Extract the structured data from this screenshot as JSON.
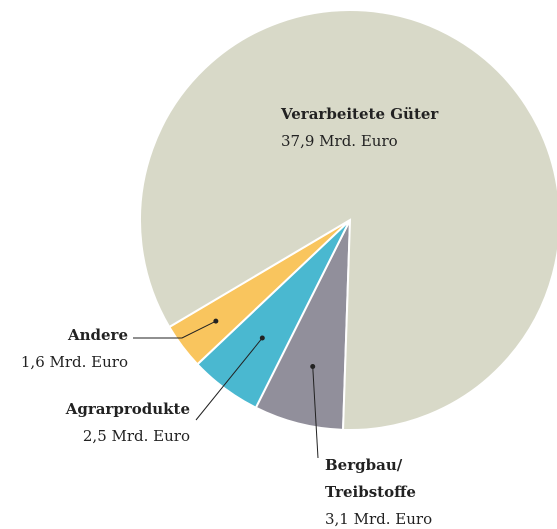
{
  "chart_data": {
    "type": "pie",
    "categories": [
      "Verarbeitete Güter",
      "Bergbau/ Treibstoffe",
      "Agrarprodukte",
      "Andere"
    ],
    "values": [
      37.9,
      3.1,
      2.5,
      1.6
    ],
    "value_labels": [
      "37,9 Mrd. Euro",
      "3,1 Mrd. Euro",
      "2,5 Mrd. Euro",
      "1,6 Mrd. Euro"
    ],
    "colors": [
      "#d8d9c8",
      "#918f9b",
      "#4ab8d0",
      "#f9c55e"
    ]
  }
}
